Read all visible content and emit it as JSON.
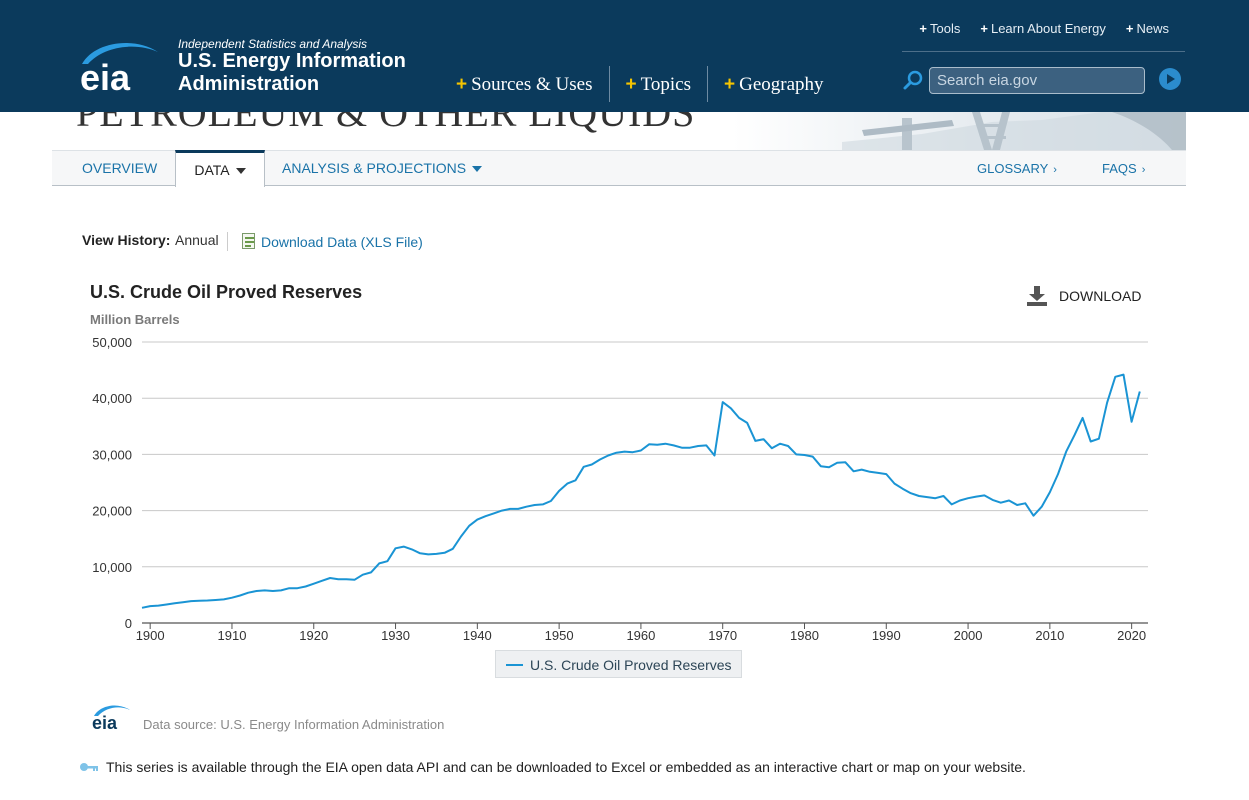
{
  "header": {
    "tagline": "Independent Statistics and Analysis",
    "org_line1": "U.S. Energy Information",
    "org_line2": "Administration",
    "logo_text": "eia",
    "nav": [
      {
        "label": "Sources & Uses"
      },
      {
        "label": "Topics"
      },
      {
        "label": "Geography"
      }
    ],
    "util_nav": [
      {
        "label": "Tools"
      },
      {
        "label": "Learn About Energy"
      },
      {
        "label": "News"
      }
    ],
    "search_placeholder": "Search eia.gov",
    "colors": {
      "background": "#0b3a5c",
      "plus": "#f5c400",
      "link": "#1a73a8"
    }
  },
  "section": {
    "title": "PETROLEUM & OTHER LIQUIDS"
  },
  "tabs": {
    "overview": "OVERVIEW",
    "data": "DATA",
    "analysis": "ANALYSIS & PROJECTIONS",
    "glossary": "GLOSSARY",
    "faqs": "FAQS"
  },
  "view_history": {
    "label": "View History:",
    "value": "Annual",
    "download_link": "Download Data (XLS File)"
  },
  "chart_header": {
    "download_label": "DOWNLOAD"
  },
  "chart_data": {
    "type": "line",
    "title": "U.S. Crude Oil Proved Reserves",
    "ylabel": "Million Barrels",
    "xlabel": "",
    "ylim": [
      0,
      50000
    ],
    "xlim": [
      1899,
      2022
    ],
    "y_ticks": [
      0,
      10000,
      20000,
      30000,
      40000,
      50000
    ],
    "y_tick_labels": [
      "0",
      "10,000",
      "20,000",
      "30,000",
      "40,000",
      "50,000"
    ],
    "x_ticks": [
      1900,
      1910,
      1920,
      1930,
      1940,
      1950,
      1960,
      1970,
      1980,
      1990,
      2000,
      2010,
      2020
    ],
    "grid": "horizontal",
    "legend_position": "bottom-center",
    "series": [
      {
        "name": "U.S. Crude Oil Proved Reserves",
        "color": "#1a94d4",
        "points": [
          [
            1899,
            2700
          ],
          [
            1900,
            3000
          ],
          [
            1901,
            3100
          ],
          [
            1902,
            3300
          ],
          [
            1903,
            3500
          ],
          [
            1904,
            3700
          ],
          [
            1905,
            3900
          ],
          [
            1906,
            3950
          ],
          [
            1907,
            4000
          ],
          [
            1908,
            4100
          ],
          [
            1909,
            4200
          ],
          [
            1910,
            4500
          ],
          [
            1911,
            4900
          ],
          [
            1912,
            5400
          ],
          [
            1913,
            5700
          ],
          [
            1914,
            5800
          ],
          [
            1915,
            5700
          ],
          [
            1916,
            5800
          ],
          [
            1917,
            6200
          ],
          [
            1918,
            6200
          ],
          [
            1919,
            6500
          ],
          [
            1920,
            7000
          ],
          [
            1921,
            7500
          ],
          [
            1922,
            8000
          ],
          [
            1923,
            7800
          ],
          [
            1924,
            7800
          ],
          [
            1925,
            7700
          ],
          [
            1926,
            8600
          ],
          [
            1927,
            9000
          ],
          [
            1928,
            10600
          ],
          [
            1929,
            11000
          ],
          [
            1930,
            13300
          ],
          [
            1931,
            13600
          ],
          [
            1932,
            13100
          ],
          [
            1933,
            12400
          ],
          [
            1934,
            12200
          ],
          [
            1935,
            12300
          ],
          [
            1936,
            12500
          ],
          [
            1937,
            13200
          ],
          [
            1938,
            15400
          ],
          [
            1939,
            17300
          ],
          [
            1940,
            18400
          ],
          [
            1941,
            19000
          ],
          [
            1942,
            19500
          ],
          [
            1943,
            20000
          ],
          [
            1944,
            20300
          ],
          [
            1945,
            20300
          ],
          [
            1946,
            20700
          ],
          [
            1947,
            21000
          ],
          [
            1948,
            21100
          ],
          [
            1949,
            21700
          ],
          [
            1950,
            23500
          ],
          [
            1951,
            24800
          ],
          [
            1952,
            25400
          ],
          [
            1953,
            27800
          ],
          [
            1954,
            28200
          ],
          [
            1955,
            29100
          ],
          [
            1956,
            29800
          ],
          [
            1957,
            30300
          ],
          [
            1958,
            30500
          ],
          [
            1959,
            30400
          ],
          [
            1960,
            30700
          ],
          [
            1961,
            31800
          ],
          [
            1962,
            31700
          ],
          [
            1963,
            31900
          ],
          [
            1964,
            31600
          ],
          [
            1965,
            31200
          ],
          [
            1966,
            31200
          ],
          [
            1967,
            31500
          ],
          [
            1968,
            31600
          ],
          [
            1969,
            29800
          ],
          [
            1970,
            39300
          ],
          [
            1971,
            38200
          ],
          [
            1972,
            36500
          ],
          [
            1973,
            35600
          ],
          [
            1974,
            32400
          ],
          [
            1975,
            32700
          ],
          [
            1976,
            31100
          ],
          [
            1977,
            31900
          ],
          [
            1978,
            31500
          ],
          [
            1979,
            30000
          ],
          [
            1980,
            29900
          ],
          [
            1981,
            29600
          ],
          [
            1982,
            27900
          ],
          [
            1983,
            27700
          ],
          [
            1984,
            28500
          ],
          [
            1985,
            28600
          ],
          [
            1986,
            27000
          ],
          [
            1987,
            27300
          ],
          [
            1988,
            26900
          ],
          [
            1989,
            26700
          ],
          [
            1990,
            26500
          ],
          [
            1991,
            24800
          ],
          [
            1992,
            23900
          ],
          [
            1993,
            23100
          ],
          [
            1994,
            22600
          ],
          [
            1995,
            22400
          ],
          [
            1996,
            22200
          ],
          [
            1997,
            22600
          ],
          [
            1998,
            21100
          ],
          [
            1999,
            21800
          ],
          [
            2000,
            22200
          ],
          [
            2001,
            22500
          ],
          [
            2002,
            22700
          ],
          [
            2003,
            21900
          ],
          [
            2004,
            21400
          ],
          [
            2005,
            21800
          ],
          [
            2006,
            21000
          ],
          [
            2007,
            21300
          ],
          [
            2008,
            19100
          ],
          [
            2009,
            20700
          ],
          [
            2010,
            23300
          ],
          [
            2011,
            26500
          ],
          [
            2012,
            30500
          ],
          [
            2013,
            33400
          ],
          [
            2014,
            36500
          ],
          [
            2015,
            32300
          ],
          [
            2016,
            32800
          ],
          [
            2017,
            39200
          ],
          [
            2018,
            43800
          ],
          [
            2019,
            44200
          ],
          [
            2020,
            35800
          ],
          [
            2021,
            41200
          ]
        ]
      }
    ]
  },
  "footer": {
    "source_logo_text": "eia",
    "source": "Data source: U.S. Energy Information Administration",
    "api_note": "This series is available through the EIA open data API and can be downloaded to Excel or embedded as an interactive chart or map on your website."
  }
}
